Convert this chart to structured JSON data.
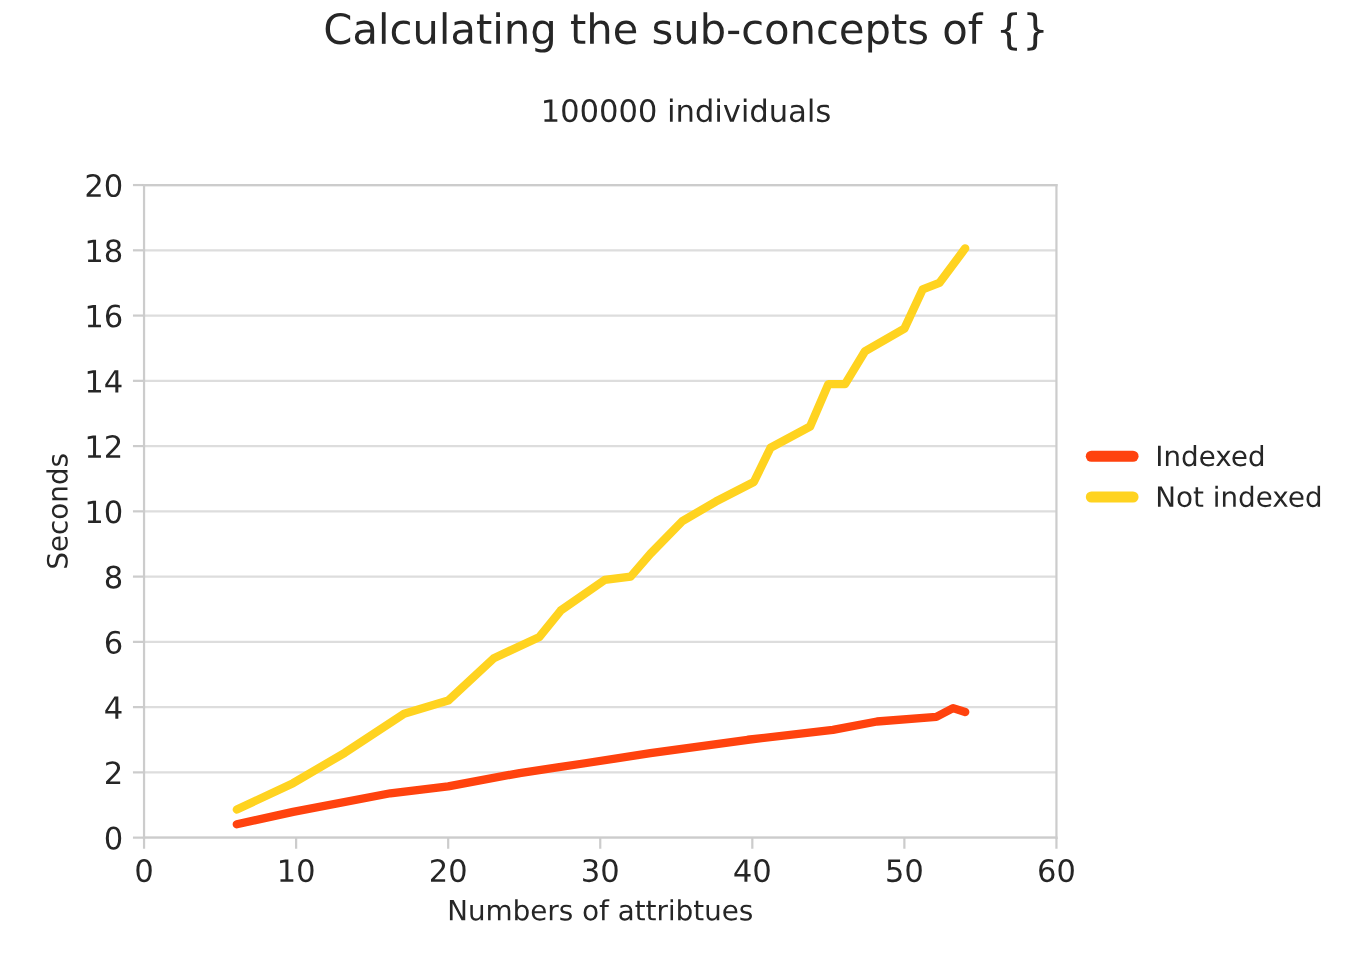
{
  "chart_data": {
    "type": "line",
    "title": "Calculating the sub-concepts of {}",
    "subtitle": "100000 individuals",
    "xlabel": "Numbers of attribtues",
    "ylabel": "Seconds",
    "xlim": [
      0,
      60
    ],
    "xticks": [
      0,
      10,
      20,
      30,
      40,
      50,
      60
    ],
    "ylim": [
      0,
      20
    ],
    "yticks": [
      0,
      2,
      4,
      6,
      8,
      10,
      12,
      14,
      16,
      18,
      20
    ],
    "grid": "y",
    "legend": "right",
    "marker": "none",
    "line_style": "solid",
    "series": [
      {
        "name": "Indexed",
        "color": "#ff420e",
        "x": [
          6.1,
          9.8,
          16.2,
          20,
          24.7,
          29,
          33.3,
          39.7,
          45.3,
          48.2,
          52.1,
          53.2,
          54
        ],
        "values": [
          0.41,
          0.79,
          1.36,
          1.57,
          1.98,
          2.28,
          2.59,
          3.0,
          3.3,
          3.56,
          3.7,
          3.97,
          3.85
        ]
      },
      {
        "name": "Not indexed",
        "color": "#ffd320",
        "x": [
          6.1,
          9.8,
          13.2,
          17.1,
          20,
          23,
          26,
          27.4,
          30.3,
          32,
          33.3,
          35.4,
          37.6,
          40.1,
          41.2,
          43.8,
          45,
          46.1,
          47.4,
          50,
          51.2,
          52.3,
          54
        ],
        "values": [
          0.86,
          1.67,
          2.6,
          3.8,
          4.2,
          5.5,
          6.15,
          6.96,
          7.9,
          8.0,
          8.7,
          9.7,
          10.3,
          10.9,
          11.95,
          12.6,
          13.9,
          13.9,
          14.9,
          15.6,
          16.8,
          17.0,
          18.06
        ]
      }
    ]
  }
}
